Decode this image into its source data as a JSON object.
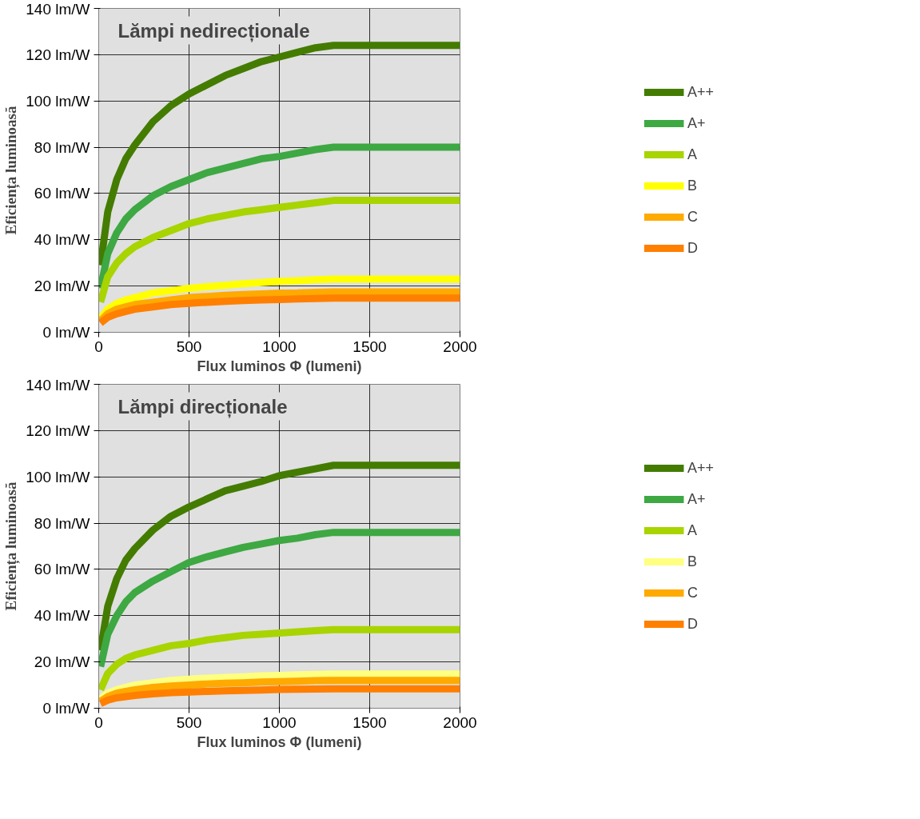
{
  "chart_data": [
    {
      "type": "line",
      "title": "Lămpi nedirecționale",
      "xlabel": "Flux luminos Φ (lumeni)",
      "ylabel": "Eficiența luminoasă",
      "x": [
        10,
        50,
        100,
        150,
        200,
        300,
        400,
        500,
        600,
        700,
        800,
        900,
        1000,
        1100,
        1200,
        1300,
        2000
      ],
      "series": [
        {
          "name": "A++",
          "color": "#437c00",
          "values": [
            29,
            52,
            66,
            75,
            81,
            91,
            98,
            103,
            107,
            111,
            114,
            117,
            119,
            121,
            123,
            124,
            124
          ]
        },
        {
          "name": "A+",
          "color": "#3ea843",
          "values": [
            19,
            34,
            43,
            49,
            53,
            59,
            63,
            66,
            69,
            71,
            73,
            75,
            76,
            77.5,
            79,
            80,
            80
          ]
        },
        {
          "name": "A",
          "color": "#a8d400",
          "values": [
            13,
            24,
            30,
            34,
            37,
            41,
            44,
            47,
            49,
            50.5,
            52,
            53,
            54,
            55,
            56,
            57,
            57
          ]
        },
        {
          "name": "B",
          "color": "#ffff00",
          "values": [
            6,
            10,
            12.5,
            14,
            15,
            17,
            18,
            19,
            19.7,
            20.3,
            21,
            21.5,
            22,
            22.3,
            22.7,
            23,
            23
          ]
        },
        {
          "name": "C",
          "color": "#ffaa00",
          "values": [
            5,
            8,
            10,
            11,
            12,
            13,
            14,
            15,
            15.5,
            16,
            16.3,
            16.6,
            16.9,
            17,
            17.3,
            17.5,
            17.5
          ]
        },
        {
          "name": "D",
          "color": "#ff7f00",
          "values": [
            4,
            6.5,
            8,
            9,
            10,
            11,
            12,
            12.5,
            13,
            13.4,
            13.7,
            14,
            14.2,
            14.4,
            14.6,
            14.8,
            14.8
          ]
        }
      ],
      "xlim": [
        0,
        2000
      ],
      "xticks": [
        0,
        500,
        1000,
        1500,
        2000
      ],
      "ylim": [
        0,
        140
      ],
      "yticks": [
        {
          "value": 0,
          "label": "0 lm/W"
        },
        {
          "value": 20,
          "label": "20 lm/W"
        },
        {
          "value": 40,
          "label": "40 lm/W"
        },
        {
          "value": 60,
          "label": "60 lm/W"
        },
        {
          "value": 80,
          "label": "80 lm/W"
        },
        {
          "value": 100,
          "label": "100 lm/W"
        },
        {
          "value": 120,
          "label": "120 lm/W"
        },
        {
          "value": 140,
          "label": "140 lm/W"
        }
      ],
      "grid": true,
      "legend": "right",
      "marker": "none",
      "line_style": "solid"
    },
    {
      "type": "line",
      "title": "Lămpi direcționale",
      "xlabel": "Flux luminos Φ (lumeni)",
      "ylabel": "Eficiența luminoasă",
      "x": [
        10,
        50,
        100,
        150,
        200,
        300,
        400,
        500,
        600,
        700,
        800,
        900,
        1000,
        1100,
        1200,
        1300,
        2000
      ],
      "series": [
        {
          "name": "A++",
          "color": "#437c00",
          "values": [
            25,
            44,
            56,
            64,
            69,
            77,
            83,
            87,
            90.5,
            94,
            96,
            98,
            100.5,
            102,
            103.5,
            105,
            105
          ]
        },
        {
          "name": "A+",
          "color": "#3ea843",
          "values": [
            18,
            32,
            40,
            46,
            50,
            55,
            59,
            63,
            65.5,
            67.5,
            69.5,
            71,
            72.5,
            73.5,
            75,
            76,
            76
          ]
        },
        {
          "name": "A",
          "color": "#a8d400",
          "values": [
            8,
            15,
            19,
            21.5,
            23,
            25,
            27,
            28,
            29.5,
            30.5,
            31.5,
            32,
            32.5,
            33,
            33.5,
            34,
            34
          ]
        },
        {
          "name": "B",
          "color": "#ffff80",
          "values": [
            4,
            6.5,
            8,
            9,
            10,
            11,
            12,
            12.5,
            13,
            13.3,
            13.6,
            14,
            14.2,
            14.4,
            14.6,
            14.8,
            14.8
          ]
        },
        {
          "name": "C",
          "color": "#ffaa00",
          "values": [
            3,
            5,
            6.5,
            7.3,
            8,
            9,
            9.6,
            10,
            10.5,
            10.8,
            11,
            11.3,
            11.5,
            11.7,
            11.9,
            12,
            12
          ]
        },
        {
          "name": "D",
          "color": "#ff7f00",
          "values": [
            2,
            3.5,
            4.5,
            5,
            5.5,
            6.2,
            6.7,
            7,
            7.3,
            7.5,
            7.7,
            7.9,
            8.1,
            8.2,
            8.3,
            8.4,
            8.4
          ]
        }
      ],
      "xlim": [
        0,
        2000
      ],
      "xticks": [
        0,
        500,
        1000,
        1500,
        2000
      ],
      "ylim": [
        0,
        140
      ],
      "yticks": [
        {
          "value": 0,
          "label": "0 lm/W"
        },
        {
          "value": 20,
          "label": "20 lm/W"
        },
        {
          "value": 40,
          "label": "40 lm/W"
        },
        {
          "value": 60,
          "label": "60 lm/W"
        },
        {
          "value": 80,
          "label": "80 lm/W"
        },
        {
          "value": 100,
          "label": "100 lm/W"
        },
        {
          "value": 120,
          "label": "120 lm/W"
        },
        {
          "value": 140,
          "label": "140 lm/W"
        }
      ],
      "grid": true,
      "legend": "right",
      "marker": "none",
      "line_style": "solid"
    }
  ]
}
